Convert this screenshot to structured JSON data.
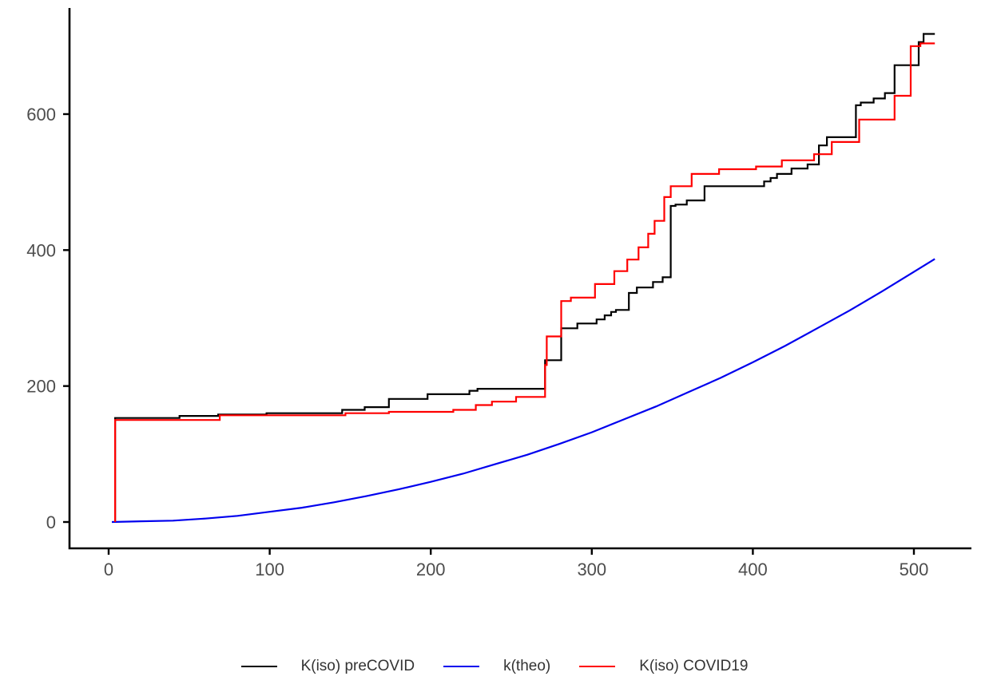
{
  "chart_data": {
    "type": "line",
    "title": "",
    "xlabel": "",
    "ylabel": "",
    "grid": false,
    "legend_position": "bottom",
    "x_ticks": [
      0,
      100,
      200,
      300,
      400,
      500
    ],
    "y_ticks": [
      0,
      200,
      400,
      600
    ],
    "xlim": [
      -24,
      536
    ],
    "ylim": [
      0,
      758
    ],
    "axis_color": "#000000",
    "tick_label_color": "#4d4d4d",
    "series": [
      {
        "name": "K(iso) preCOVID",
        "color": "#000000",
        "line_type": "step",
        "points": [
          [
            4,
            0
          ],
          [
            4,
            153
          ],
          [
            44,
            156
          ],
          [
            68,
            158
          ],
          [
            98,
            160
          ],
          [
            145,
            165
          ],
          [
            159,
            169
          ],
          [
            174,
            181
          ],
          [
            198,
            188
          ],
          [
            224,
            193
          ],
          [
            229,
            196
          ],
          [
            271,
            238
          ],
          [
            281,
            285
          ],
          [
            291,
            292
          ],
          [
            303,
            298
          ],
          [
            308,
            304
          ],
          [
            312,
            309
          ],
          [
            315,
            312
          ],
          [
            323,
            337
          ],
          [
            328,
            345
          ],
          [
            338,
            353
          ],
          [
            344,
            360
          ],
          [
            349,
            465
          ],
          [
            352,
            467
          ],
          [
            359,
            473
          ],
          [
            370,
            494
          ],
          [
            407,
            501
          ],
          [
            411,
            506
          ],
          [
            415,
            512
          ],
          [
            424,
            520
          ],
          [
            434,
            526
          ],
          [
            441,
            554
          ],
          [
            446,
            566
          ],
          [
            464,
            613
          ],
          [
            467,
            617
          ],
          [
            475,
            623
          ],
          [
            482,
            631
          ],
          [
            488,
            672
          ],
          [
            503,
            706
          ],
          [
            506,
            718
          ],
          [
            513,
            718
          ]
        ]
      },
      {
        "name": "k(theo)",
        "color": "#0000ee",
        "line_type": "smooth",
        "points": [
          [
            2,
            0
          ],
          [
            20,
            1
          ],
          [
            40,
            2
          ],
          [
            60,
            5
          ],
          [
            80,
            9
          ],
          [
            100,
            15
          ],
          [
            120,
            21
          ],
          [
            140,
            29
          ],
          [
            160,
            38
          ],
          [
            180,
            48
          ],
          [
            200,
            59
          ],
          [
            220,
            71
          ],
          [
            240,
            85
          ],
          [
            260,
            99
          ],
          [
            280,
            115
          ],
          [
            300,
            132
          ],
          [
            320,
            151
          ],
          [
            340,
            170
          ],
          [
            360,
            191
          ],
          [
            380,
            212
          ],
          [
            400,
            235
          ],
          [
            420,
            259
          ],
          [
            440,
            285
          ],
          [
            460,
            311
          ],
          [
            480,
            339
          ],
          [
            500,
            368
          ],
          [
            513,
            387
          ]
        ]
      },
      {
        "name": "K(iso) COVID19",
        "color": "#ff0000",
        "line_type": "step",
        "points": [
          [
            4,
            0
          ],
          [
            4,
            150
          ],
          [
            69,
            157
          ],
          [
            147,
            160
          ],
          [
            174,
            162
          ],
          [
            214,
            165
          ],
          [
            228,
            172
          ],
          [
            238,
            177
          ],
          [
            253,
            184
          ],
          [
            271,
            231
          ],
          [
            272,
            273
          ],
          [
            281,
            325
          ],
          [
            287,
            330
          ],
          [
            302,
            350
          ],
          [
            314,
            369
          ],
          [
            322,
            386
          ],
          [
            329,
            404
          ],
          [
            335,
            424
          ],
          [
            339,
            443
          ],
          [
            345,
            478
          ],
          [
            349,
            494
          ],
          [
            362,
            512
          ],
          [
            379,
            519
          ],
          [
            402,
            523
          ],
          [
            418,
            532
          ],
          [
            438,
            541
          ],
          [
            449,
            559
          ],
          [
            466,
            592
          ],
          [
            488,
            627
          ],
          [
            498,
            700
          ],
          [
            504,
            704
          ],
          [
            513,
            704
          ]
        ]
      }
    ]
  }
}
